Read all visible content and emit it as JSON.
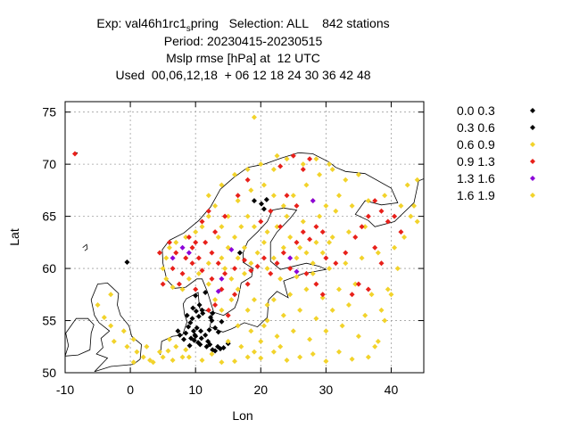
{
  "title": {
    "line1_prefix": "Exp: val46h1rc1",
    "line1_sub": "s",
    "line1_suffix": "pring   Selection: ALL    842 stations",
    "line2": "Period: 20230415-20230515",
    "line3": "Mslp rmse [hPa] at  12 UTC",
    "line4": "Used  00,06,12,18  + 06 12 18 24 30 36 42 48"
  },
  "chart_data": {
    "type": "scatter",
    "xlabel": "Lon",
    "ylabel": "Lat",
    "xlim": [
      -10,
      45
    ],
    "ylim": [
      50,
      76
    ],
    "xticks": [
      -10,
      0,
      10,
      20,
      30,
      40
    ],
    "yticks": [
      50,
      55,
      60,
      65,
      70,
      75
    ],
    "grid": true,
    "legend_position": "right",
    "series": [
      {
        "name": "0.0 0.3",
        "color": "#000000",
        "points": [
          [
            13.4,
            52.5
          ],
          [
            12.6,
            52.2
          ],
          [
            13.8,
            52.3
          ],
          [
            9.9,
            53.6
          ],
          [
            10.0,
            53.5
          ],
          [
            9.7,
            54.0
          ],
          [
            10.2,
            54.3
          ],
          [
            10.8,
            54.0
          ],
          [
            8.9,
            54.4
          ],
          [
            9.2,
            54.8
          ],
          [
            9.5,
            55.2
          ],
          [
            10.5,
            55.4
          ],
          [
            11.1,
            55.7
          ],
          [
            9.8,
            53.1
          ],
          [
            8.5,
            53.8
          ],
          [
            10.9,
            53.3
          ],
          [
            11.5,
            53.6
          ],
          [
            12.1,
            54.1
          ],
          [
            13.0,
            54.3
          ],
          [
            11.9,
            53.0
          ],
          [
            10.4,
            52.9
          ],
          [
            9.1,
            52.6
          ],
          [
            8.2,
            53.2
          ],
          [
            7.6,
            53.6
          ],
          [
            12.5,
            55.0
          ],
          [
            11.0,
            56.0
          ],
          [
            9.6,
            56.2
          ],
          [
            10.6,
            56.5
          ],
          [
            12.6,
            55.7
          ],
          [
            14.0,
            54.9
          ],
          [
            13.5,
            53.9
          ],
          [
            10.1,
            55.9
          ],
          [
            8.7,
            55.5
          ],
          [
            12.3,
            55.3
          ],
          [
            19.0,
            66.5
          ],
          [
            20.1,
            66.2
          ],
          [
            20.5,
            65.7
          ],
          [
            20.9,
            66.6
          ],
          [
            15.0,
            52.8
          ],
          [
            11.7,
            52.5
          ],
          [
            7.3,
            54.0
          ],
          [
            9.3,
            53.3
          ],
          [
            10.7,
            52.7
          ],
          [
            13.0,
            52.1
          ],
          [
            12.2,
            52.7
          ],
          [
            14.3,
            52.4
          ]
        ]
      },
      {
        "name": "0.3 0.6",
        "color": "#000000",
        "points": [
          [
            -0.5,
            60.6
          ],
          [
            11.5,
            57.7
          ],
          [
            10.0,
            57.4
          ],
          [
            16.8,
            61.5
          ]
        ]
      },
      {
        "name": "0.6 0.9",
        "color": "#f2d32b",
        "points": [
          [
            19.0,
            74.5
          ],
          [
            8.0,
            51.5
          ],
          [
            6.5,
            51.2
          ],
          [
            5.8,
            52.1
          ],
          [
            4.5,
            52.0
          ],
          [
            3.0,
            51.2
          ],
          [
            2.0,
            51.5
          ],
          [
            0.5,
            51.0
          ],
          [
            -0.5,
            52.5
          ],
          [
            0.5,
            53.2
          ],
          [
            -1.0,
            54.0
          ],
          [
            -2.5,
            53.0
          ],
          [
            -3.0,
            54.5
          ],
          [
            -4.0,
            55.3
          ],
          [
            -5.0,
            56.5
          ],
          [
            -3.0,
            57.5
          ],
          [
            14.0,
            51.0
          ],
          [
            16.0,
            51.1
          ],
          [
            18.0,
            51.5
          ],
          [
            20.0,
            51.4
          ],
          [
            22.0,
            52.0
          ],
          [
            24.0,
            51.2
          ],
          [
            26.0,
            51.5
          ],
          [
            28.0,
            51.8
          ],
          [
            30.0,
            51.1
          ],
          [
            32.0,
            52.0
          ],
          [
            34.0,
            51.3
          ],
          [
            20.0,
            53.0
          ],
          [
            22.5,
            53.5
          ],
          [
            25.0,
            54.0
          ],
          [
            27.5,
            53.2
          ],
          [
            30.0,
            54.0
          ],
          [
            32.5,
            54.5
          ],
          [
            35.0,
            53.5
          ],
          [
            37.5,
            52.5
          ],
          [
            21.0,
            55.0
          ],
          [
            23.5,
            55.5
          ],
          [
            26.0,
            56.0
          ],
          [
            28.5,
            55.2
          ],
          [
            31.0,
            56.0
          ],
          [
            33.5,
            56.5
          ],
          [
            36.0,
            55.5
          ],
          [
            38.5,
            56.0
          ],
          [
            22.0,
            57.0
          ],
          [
            24.5,
            57.5
          ],
          [
            27.0,
            58.0
          ],
          [
            29.5,
            57.2
          ],
          [
            32.0,
            58.0
          ],
          [
            34.5,
            58.5
          ],
          [
            37.0,
            57.5
          ],
          [
            39.5,
            58.0
          ],
          [
            23.0,
            59.0
          ],
          [
            25.5,
            59.2
          ],
          [
            28.0,
            59.5
          ],
          [
            30.5,
            60.0
          ],
          [
            33.0,
            60.5
          ],
          [
            35.5,
            61.0
          ],
          [
            38.0,
            61.5
          ],
          [
            40.5,
            62.0
          ],
          [
            26.0,
            62.0
          ],
          [
            28.5,
            62.5
          ],
          [
            31.0,
            63.0
          ],
          [
            33.5,
            63.5
          ],
          [
            36.0,
            64.0
          ],
          [
            26.5,
            64.5
          ],
          [
            29.0,
            65.0
          ],
          [
            31.5,
            65.5
          ],
          [
            34.0,
            66.0
          ],
          [
            36.5,
            66.5
          ],
          [
            39.0,
            67.0
          ],
          [
            41.5,
            66.0
          ],
          [
            43.0,
            65.0
          ],
          [
            44.0,
            64.5
          ],
          [
            42.5,
            68.0
          ],
          [
            44.0,
            68.5
          ],
          [
            25.0,
            67.0
          ],
          [
            27.0,
            68.0
          ],
          [
            29.0,
            69.0
          ],
          [
            31.0,
            69.5
          ],
          [
            33.0,
            68.5
          ],
          [
            35.0,
            69.0
          ],
          [
            22.0,
            69.5
          ],
          [
            20.0,
            70.0
          ],
          [
            18.0,
            69.5
          ],
          [
            16.0,
            69.0
          ],
          [
            14.0,
            68.0
          ],
          [
            12.0,
            67.0
          ],
          [
            13.0,
            66.0
          ],
          [
            12.0,
            65.0
          ],
          [
            11.0,
            64.0
          ],
          [
            10.0,
            63.5
          ],
          [
            8.5,
            63.0
          ],
          [
            7.0,
            62.5
          ],
          [
            6.0,
            62.0
          ],
          [
            5.5,
            61.0
          ],
          [
            5.0,
            60.0
          ],
          [
            5.5,
            59.0
          ],
          [
            6.5,
            58.2
          ],
          [
            8.0,
            58.0
          ],
          [
            9.0,
            59.0
          ],
          [
            10.5,
            59.5
          ],
          [
            12.0,
            60.5
          ],
          [
            14.0,
            61.0
          ],
          [
            15.0,
            62.0
          ],
          [
            16.0,
            63.0
          ],
          [
            17.0,
            64.0
          ],
          [
            18.0,
            65.0
          ],
          [
            19.0,
            64.0
          ],
          [
            21.0,
            63.5
          ],
          [
            22.5,
            64.0
          ],
          [
            24.0,
            65.0
          ],
          [
            23.5,
            66.0
          ],
          [
            22.0,
            67.0
          ],
          [
            20.5,
            68.0
          ],
          [
            18.5,
            67.5
          ],
          [
            16.5,
            66.5
          ],
          [
            15.0,
            65.0
          ],
          [
            14.0,
            64.0
          ],
          [
            13.5,
            63.0
          ],
          [
            14.5,
            60.0
          ],
          [
            15.5,
            59.0
          ],
          [
            16.5,
            58.0
          ],
          [
            15.5,
            57.0
          ],
          [
            14.0,
            56.0
          ],
          [
            13.0,
            57.0
          ],
          [
            12.0,
            58.5
          ],
          [
            17.5,
            59.5
          ],
          [
            18.5,
            60.5
          ],
          [
            19.5,
            61.5
          ],
          [
            20.5,
            62.5
          ],
          [
            17.5,
            62.0
          ],
          [
            16.5,
            61.0
          ],
          [
            21.0,
            60.0
          ],
          [
            22.0,
            61.0
          ],
          [
            23.5,
            62.0
          ],
          [
            24.5,
            63.0
          ],
          [
            25.5,
            61.0
          ],
          [
            27.0,
            61.5
          ],
          [
            28.0,
            60.5
          ],
          [
            29.5,
            61.5
          ],
          [
            30.5,
            62.5
          ],
          [
            19.0,
            57.0
          ],
          [
            18.0,
            56.0
          ],
          [
            21.0,
            56.5
          ],
          [
            20.5,
            54.5
          ],
          [
            18.5,
            54.0
          ],
          [
            16.5,
            54.5
          ],
          [
            15.0,
            53.0
          ],
          [
            17.0,
            52.5
          ],
          [
            19.0,
            52.0
          ],
          [
            23.0,
            52.5
          ],
          [
            36.5,
            51.5
          ],
          [
            38.0,
            53.0
          ],
          [
            39.0,
            55.0
          ],
          [
            40.0,
            57.5
          ],
          [
            41.0,
            60.0
          ],
          [
            42.0,
            63.0
          ],
          [
            43.5,
            66.0
          ],
          [
            30.0,
            66.0
          ],
          [
            32.0,
            67.0
          ],
          [
            28.0,
            66.5
          ],
          [
            26.5,
            70.0
          ],
          [
            28.5,
            70.5
          ],
          [
            30.5,
            70.0
          ],
          [
            24.0,
            70.5
          ],
          [
            22.5,
            70.8
          ],
          [
            9.0,
            51.5
          ],
          [
            11.0,
            51.2
          ],
          [
            12.5,
            51.8
          ],
          [
            7.0,
            52.5
          ],
          [
            6.0,
            53.2
          ],
          [
            8.5,
            52.2
          ],
          [
            5.0,
            51.5
          ],
          [
            3.5,
            51.0
          ],
          [
            2.5,
            52.5
          ],
          [
            1.0,
            52.0
          ]
        ]
      },
      {
        "name": "0.9 1.3",
        "color": "#e8201a",
        "points": [
          [
            -8.5,
            71.0
          ],
          [
            6.0,
            62.5
          ],
          [
            7.0,
            61.5
          ],
          [
            8.5,
            61.0
          ],
          [
            9.5,
            62.0
          ],
          [
            10.5,
            61.0
          ],
          [
            11.5,
            62.5
          ],
          [
            12.5,
            61.5
          ],
          [
            6.5,
            60.0
          ],
          [
            8.0,
            59.5
          ],
          [
            9.5,
            60.5
          ],
          [
            11.0,
            59.8
          ],
          [
            12.5,
            59.0
          ],
          [
            13.5,
            60.5
          ],
          [
            14.5,
            59.5
          ],
          [
            16.0,
            60.0
          ],
          [
            17.5,
            60.8
          ],
          [
            18.5,
            59.8
          ],
          [
            19.5,
            60.2
          ],
          [
            20.5,
            61.0
          ],
          [
            21.5,
            59.5
          ],
          [
            22.5,
            60.5
          ],
          [
            23.5,
            61.5
          ],
          [
            24.5,
            60.0
          ],
          [
            25.5,
            62.5
          ],
          [
            26.5,
            63.5
          ],
          [
            27.5,
            62.8
          ],
          [
            28.5,
            64.0
          ],
          [
            29.5,
            63.5
          ],
          [
            30.0,
            61.0
          ],
          [
            31.5,
            60.5
          ],
          [
            33.0,
            61.5
          ],
          [
            34.5,
            63.0
          ],
          [
            35.5,
            64.0
          ],
          [
            36.5,
            65.0
          ],
          [
            37.5,
            66.5
          ],
          [
            38.5,
            65.5
          ],
          [
            39.5,
            64.5
          ],
          [
            40.5,
            65.0
          ],
          [
            41.5,
            63.5
          ],
          [
            35.0,
            58.5
          ],
          [
            36.5,
            58.0
          ],
          [
            34.0,
            57.5
          ],
          [
            20.0,
            64.5
          ],
          [
            21.5,
            65.5
          ],
          [
            23.0,
            64.0
          ],
          [
            24.0,
            67.0
          ],
          [
            25.5,
            66.0
          ],
          [
            26.5,
            69.5
          ],
          [
            27.5,
            70.5
          ],
          [
            25.0,
            70.8
          ],
          [
            23.0,
            69.8
          ],
          [
            18.0,
            68.5
          ],
          [
            16.5,
            67.0
          ],
          [
            14.5,
            65.0
          ],
          [
            13.0,
            63.5
          ],
          [
            10.0,
            62.5
          ],
          [
            9.0,
            63.0
          ],
          [
            4.5,
            61.5
          ],
          [
            5.0,
            58.5
          ],
          [
            7.5,
            58.5
          ],
          [
            10.0,
            58.0
          ],
          [
            14.0,
            58.0
          ],
          [
            16.0,
            57.5
          ],
          [
            18.0,
            58.5
          ],
          [
            13.0,
            56.5
          ],
          [
            12.0,
            56.0
          ],
          [
            15.0,
            55.5
          ],
          [
            11.0,
            64.5
          ],
          [
            12.0,
            65.5
          ],
          [
            27.0,
            59.5
          ],
          [
            28.5,
            58.5
          ],
          [
            29.5,
            57.5
          ],
          [
            37.5,
            62.0
          ],
          [
            38.5,
            60.5
          ]
        ]
      },
      {
        "name": "1.3 1.6",
        "color": "#8b00d9",
        "points": [
          [
            6.5,
            61.0
          ],
          [
            8.0,
            62.0
          ],
          [
            9.0,
            61.5
          ],
          [
            15.5,
            61.8
          ],
          [
            24.5,
            61.0
          ],
          [
            25.5,
            59.7
          ],
          [
            14.0,
            59.0
          ],
          [
            13.5,
            57.8
          ],
          [
            28.0,
            66.5
          ]
        ]
      },
      {
        "name": "1.6 1.9",
        "color": "#f2d32b",
        "points": []
      }
    ]
  }
}
